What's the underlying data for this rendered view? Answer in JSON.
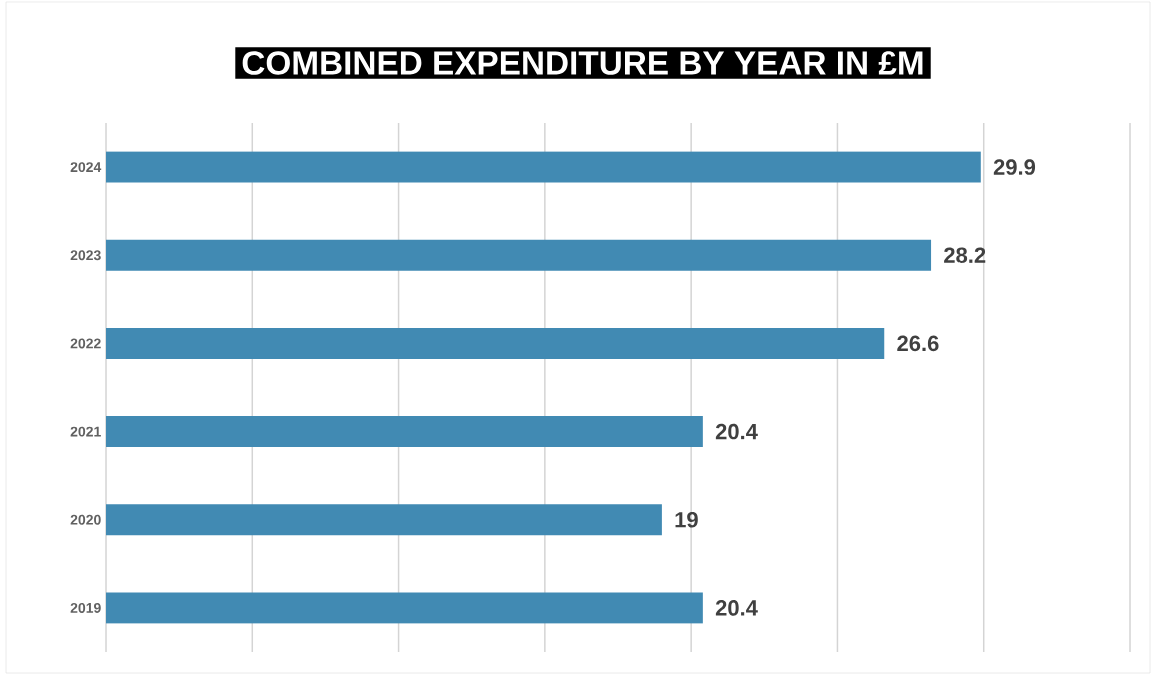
{
  "chart_data": {
    "type": "bar",
    "orientation": "horizontal",
    "title": "COMBINED EXPENDITURE BY YEAR IN £M",
    "categories": [
      "2024",
      "2023",
      "2022",
      "2021",
      "2020",
      "2019"
    ],
    "values": [
      29.9,
      28.2,
      26.6,
      20.4,
      19,
      20.4
    ],
    "color": "#418ab3",
    "xlim": [
      0,
      35
    ],
    "xticks": [
      {
        "value": 0,
        "label": null
      },
      {
        "value": 5,
        "label": null
      },
      {
        "value": 10,
        "label": null
      },
      {
        "value": 15,
        "label": null
      },
      {
        "value": 20,
        "label": null
      },
      {
        "value": 25,
        "label": null
      },
      {
        "value": 30,
        "label": null
      },
      {
        "value": 35,
        "label": null
      }
    ],
    "grid": "x",
    "tick_labels": "y",
    "data_labels": true
  }
}
